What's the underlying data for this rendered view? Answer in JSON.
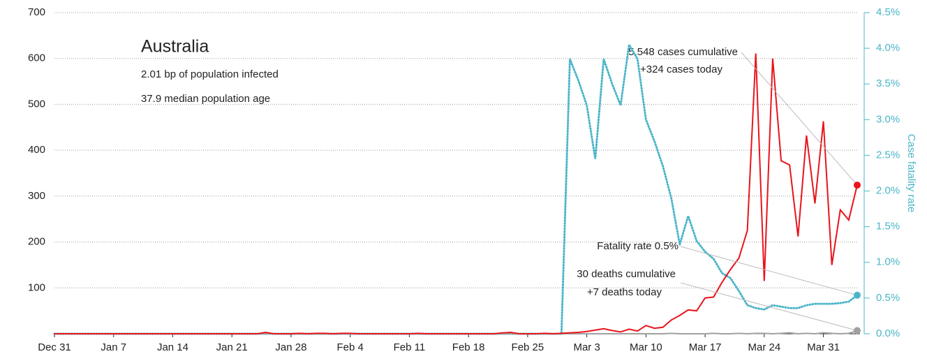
{
  "chart_data": {
    "type": "line",
    "title": "Australia",
    "subtitle": [
      "2.01 bp of population infected",
      "37.9 median population age"
    ],
    "y2_label": "Case fatality rate",
    "annotations": {
      "cases": [
        "5,548 cases cumulative",
        "+324 cases today"
      ],
      "fatality": [
        "Fatality rate 0.5%"
      ],
      "deaths": [
        "30 deaths cumulative",
        "+7 deaths today"
      ]
    },
    "x": [
      0,
      1,
      2,
      3,
      4,
      5,
      6,
      7,
      8,
      9,
      10,
      11,
      12,
      13,
      14,
      15,
      16,
      17,
      18,
      19,
      20,
      21,
      22,
      23,
      24,
      25,
      26,
      27,
      28,
      29,
      30,
      31,
      32,
      33,
      34,
      35,
      36,
      37,
      38,
      39,
      40,
      41,
      42,
      43,
      44,
      45,
      46,
      47,
      48,
      49,
      50,
      51,
      52,
      53,
      54,
      55,
      56,
      57,
      58,
      59,
      60,
      61,
      62,
      63,
      64,
      65,
      66,
      67,
      68,
      69,
      70,
      71,
      72,
      73,
      74,
      75,
      76,
      77,
      78,
      79,
      80,
      81,
      82,
      83,
      84,
      85,
      86,
      87,
      88,
      89,
      90,
      91,
      92,
      93,
      94,
      95
    ],
    "xlim": [
      0,
      95
    ],
    "xticks": [
      {
        "value": 0,
        "label": "Dec 31"
      },
      {
        "value": 7,
        "label": "Jan 7"
      },
      {
        "value": 14,
        "label": "Jan 14"
      },
      {
        "value": 21,
        "label": "Jan 21"
      },
      {
        "value": 28,
        "label": "Jan 28"
      },
      {
        "value": 35,
        "label": "Feb 4"
      },
      {
        "value": 42,
        "label": "Feb 11"
      },
      {
        "value": 49,
        "label": "Feb 18"
      },
      {
        "value": 56,
        "label": "Feb 25"
      },
      {
        "value": 63,
        "label": "Mar 3"
      },
      {
        "value": 70,
        "label": "Mar 10"
      },
      {
        "value": 77,
        "label": "Mar 17"
      },
      {
        "value": 84,
        "label": "Mar 24"
      },
      {
        "value": 91,
        "label": "Mar 31"
      }
    ],
    "ylim": [
      0,
      700
    ],
    "yticks": [
      100,
      200,
      300,
      400,
      500,
      600,
      700
    ],
    "y2lim": [
      0,
      4.5
    ],
    "y2ticks": [
      {
        "value": 0,
        "label": "0.0%"
      },
      {
        "value": 0.5,
        "label": "0.5%"
      },
      {
        "value": 1,
        "label": "1.0%"
      },
      {
        "value": 1.5,
        "label": "1.5%"
      },
      {
        "value": 2,
        "label": "2.0%"
      },
      {
        "value": 2.5,
        "label": "2.5%"
      },
      {
        "value": 3,
        "label": "3.0%"
      },
      {
        "value": 3.5,
        "label": "3.5%"
      },
      {
        "value": 4,
        "label": "4.0%"
      },
      {
        "value": 4.5,
        "label": "4.5%"
      }
    ],
    "grid": true,
    "series": [
      {
        "color": "#e8141a",
        "style": "solid",
        "values": [
          0,
          0,
          0,
          0,
          0,
          0,
          0,
          0,
          0,
          0,
          0,
          0,
          0,
          0,
          0,
          0,
          0,
          0,
          0,
          0,
          0,
          0,
          0,
          0,
          0,
          3,
          0,
          0,
          0,
          1,
          0,
          1,
          1,
          0,
          1,
          1,
          0,
          0,
          0,
          0,
          0,
          0,
          0,
          1,
          0,
          0,
          0,
          0,
          0,
          0,
          0,
          0,
          0,
          2,
          3,
          0,
          0,
          0,
          1,
          0,
          1,
          2,
          3,
          5,
          8,
          11,
          7,
          4,
          10,
          6,
          18,
          12,
          14,
          30,
          40,
          52,
          50,
          78,
          80,
          112,
          140,
          165,
          225,
          611,
          115,
          600,
          377,
          368,
          212,
          432,
          284,
          463,
          150,
          270,
          248,
          324
        ]
      },
      {
        "color": "#a0a0a0",
        "style": "solid",
        "values": [
          0,
          0,
          0,
          0,
          0,
          0,
          0,
          0,
          0,
          0,
          0,
          0,
          0,
          0,
          0,
          0,
          0,
          0,
          0,
          0,
          0,
          0,
          0,
          0,
          0,
          0,
          0,
          0,
          0,
          0,
          0,
          0,
          0,
          0,
          0,
          0,
          0,
          0,
          0,
          0,
          0,
          0,
          0,
          0,
          0,
          0,
          0,
          0,
          0,
          0,
          0,
          0,
          0,
          0,
          0,
          0,
          0,
          0,
          0,
          0,
          0,
          0,
          0,
          0,
          0,
          0,
          0,
          0,
          0,
          0,
          0,
          0,
          0,
          1,
          0,
          0,
          0,
          0,
          1,
          0,
          0,
          1,
          0,
          1,
          1,
          0,
          1,
          2,
          0,
          1,
          0,
          2,
          1,
          0,
          1,
          7
        ]
      },
      {
        "color": "#4bb5c8",
        "style": "dotted",
        "axis": "y2",
        "values": [
          0,
          0,
          0,
          0,
          0,
          0,
          0,
          0,
          0,
          0,
          0,
          0,
          0,
          0,
          0,
          0,
          0,
          0,
          0,
          0,
          0,
          0,
          0,
          0,
          0,
          0,
          0,
          0,
          0,
          0,
          0,
          0,
          0,
          0,
          0,
          0,
          0,
          0,
          0,
          0,
          0,
          0,
          0,
          0,
          0,
          0,
          0,
          0,
          0,
          0,
          0,
          0,
          0,
          0,
          0,
          0,
          0,
          0,
          0,
          0,
          0,
          3.85,
          3.55,
          3.2,
          2.45,
          3.85,
          3.5,
          3.2,
          4.05,
          3.85,
          3.0,
          2.7,
          2.35,
          1.9,
          1.25,
          1.65,
          1.3,
          1.15,
          1.05,
          0.85,
          0.78,
          0.6,
          0.4,
          0.36,
          0.34,
          0.4,
          0.38,
          0.36,
          0.36,
          0.4,
          0.42,
          0.42,
          0.42,
          0.43,
          0.45,
          0.54
        ]
      }
    ]
  }
}
